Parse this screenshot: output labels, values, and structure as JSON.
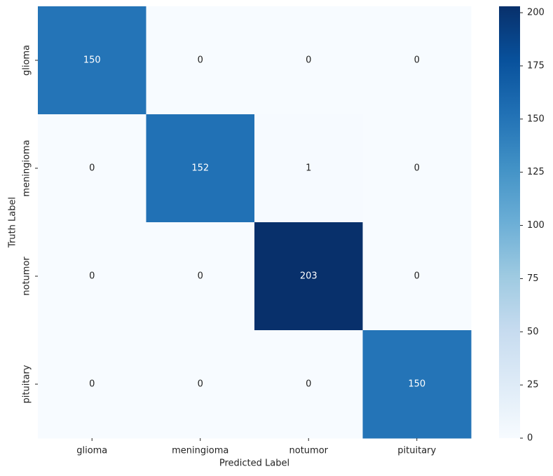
{
  "chart_data": {
    "type": "heatmap",
    "xlabel": "Predicted Label",
    "ylabel": "Truth Label",
    "x_categories": [
      "glioma",
      "meningioma",
      "notumor",
      "pituitary"
    ],
    "y_categories": [
      "glioma",
      "meningioma",
      "notumor",
      "pituitary"
    ],
    "values": [
      [
        150,
        0,
        0,
        0
      ],
      [
        0,
        152,
        1,
        0
      ],
      [
        0,
        0,
        203,
        0
      ],
      [
        0,
        0,
        0,
        150
      ]
    ],
    "colormap": "Blues",
    "clim": [
      0,
      203
    ],
    "cticks": [
      0,
      25,
      50,
      75,
      100,
      125,
      150,
      175,
      200
    ]
  }
}
